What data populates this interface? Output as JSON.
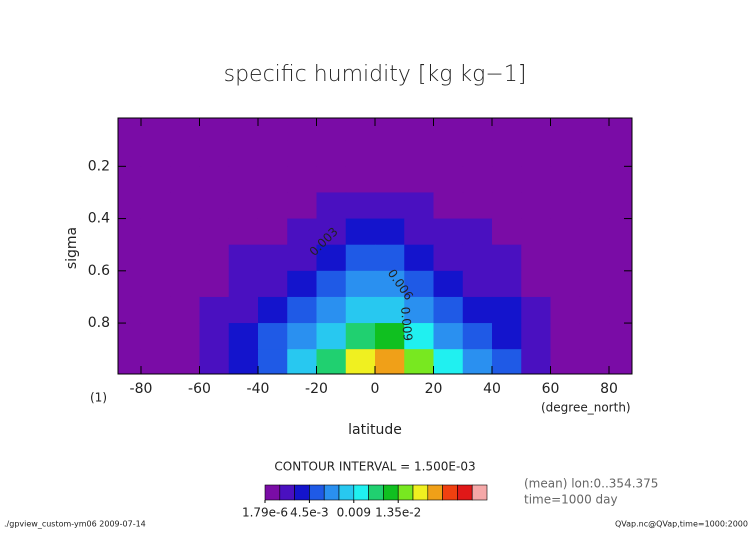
{
  "chart_data": {
    "type": "contour",
    "title": "specific humidity [kg kg−1]",
    "x_label": "latitude",
    "x_unit": "(degree_north)",
    "y_label": "sigma",
    "y_unit": "(1)",
    "xlim": [
      -87.86,
      87.86
    ],
    "ylim": [
      0.015,
      0.995
    ],
    "y_reversed": true,
    "xticks": [
      -80,
      -60,
      -40,
      -20,
      0,
      20,
      40,
      60,
      80
    ],
    "yticks": [
      0.2,
      0.4,
      0.6,
      0.8
    ],
    "x": [
      -85,
      -75,
      -65,
      -55,
      -45,
      -35,
      -25,
      -15,
      -5,
      5,
      15,
      25,
      35,
      45,
      55,
      65,
      75,
      85
    ],
    "y": [
      0.05,
      0.15,
      0.25,
      0.35,
      0.45,
      0.55,
      0.65,
      0.75,
      0.85,
      0.95
    ],
    "z": [
      [
        1e-05,
        1e-05,
        2e-05,
        3e-05,
        5e-05,
        7e-05,
        0.0001,
        0.00012,
        0.00015,
        0.00016,
        0.00013,
        0.0001,
        7e-05,
        5e-05,
        3e-05,
        2e-05,
        1e-05,
        1e-05
      ],
      [
        2e-05,
        3e-05,
        5e-05,
        0.0001,
        0.00015,
        0.0002,
        0.00028,
        0.00035,
        0.0004,
        0.00042,
        0.00036,
        0.0003,
        0.00022,
        0.00016,
        0.0001,
        5e-05,
        3e-05,
        2e-05
      ],
      [
        3e-05,
        5e-05,
        0.0001,
        0.0002,
        0.0003,
        0.00045,
        0.0006,
        0.0008,
        0.001,
        0.0011,
        0.0009,
        0.0007,
        0.0005,
        0.00035,
        0.0002,
        0.0001,
        5e-05,
        3e-05
      ],
      [
        5e-05,
        0.0001,
        0.0002,
        0.00035,
        0.0006,
        0.0009,
        0.0012,
        0.0017,
        0.0021,
        0.0022,
        0.0018,
        0.0013,
        0.001,
        0.0007,
        0.0004,
        0.0002,
        0.0001,
        5e-05
      ],
      [
        0.0001,
        0.0002,
        0.00035,
        0.0006,
        0.001,
        0.0014,
        0.0019,
        0.0026,
        0.0034,
        0.0035,
        0.0026,
        0.0019,
        0.0016,
        0.0012,
        0.0007,
        0.00035,
        0.0002,
        0.0001
      ],
      [
        0.00015,
        0.0003,
        0.0005,
        0.0009,
        0.0016,
        0.0021,
        0.0027,
        0.0035,
        0.0046,
        0.0048,
        0.0035,
        0.0026,
        0.002,
        0.0016,
        0.001,
        0.0005,
        0.0003,
        0.00015
      ],
      [
        0.0002,
        0.0004,
        0.0006,
        0.0013,
        0.0021,
        0.0028,
        0.0036,
        0.0047,
        0.006,
        0.0064,
        0.005,
        0.0036,
        0.0028,
        0.0022,
        0.0014,
        0.0007,
        0.0004,
        0.0002
      ],
      [
        0.0003,
        0.0005,
        0.0008,
        0.0016,
        0.0026,
        0.0036,
        0.0048,
        0.006,
        0.0078,
        0.0085,
        0.0065,
        0.0052,
        0.004,
        0.003,
        0.0018,
        0.0009,
        0.0005,
        0.0003
      ],
      [
        0.0004,
        0.0007,
        0.001,
        0.0018,
        0.003,
        0.0046,
        0.0062,
        0.0078,
        0.011,
        0.0125,
        0.009,
        0.007,
        0.005,
        0.0036,
        0.002,
        0.0011,
        0.0006,
        0.0004
      ],
      [
        0.0005,
        0.0008,
        0.0012,
        0.002,
        0.0035,
        0.0055,
        0.008,
        0.0105,
        0.0155,
        0.017,
        0.014,
        0.0095,
        0.007,
        0.0045,
        0.0025,
        0.0013,
        0.0008,
        0.0005
      ]
    ],
    "colorbar": {
      "title": "CONTOUR INTERVAL = 1.500E-03",
      "levels": [
        1.79e-06,
        0.0015,
        0.003,
        0.0045,
        0.006,
        0.0075,
        0.009,
        0.0105,
        0.012,
        0.0135,
        0.015,
        0.0165,
        0.018,
        0.0195,
        0.021,
        0.0225
      ],
      "colors": [
        "#7a0ca6",
        "#4a10c0",
        "#1414cc",
        "#1f5ae6",
        "#2a90f0",
        "#28c8f0",
        "#20f0f0",
        "#20d070",
        "#10c020",
        "#78e820",
        "#f0f020",
        "#f0a018",
        "#f04010",
        "#e01818",
        "#f5a8a8"
      ],
      "ticks": [
        {
          "value": 1.79e-06,
          "label": "1.79e-6"
        },
        {
          "value": 0.0045,
          "label": "4.5e-3"
        },
        0.009,
        {
          "value": 0.0135,
          "label": "1.35e-2"
        }
      ]
    },
    "contour_labels": [
      "0.003",
      "0.006",
      "0.009"
    ],
    "notes": [
      "(mean) lon:0..354.375",
      "time=1000 day"
    ],
    "footer_left": "./gpview_custom-ym06  2009-07-14",
    "footer_right": "QVap.nc@QVap,time=1000:2000"
  }
}
